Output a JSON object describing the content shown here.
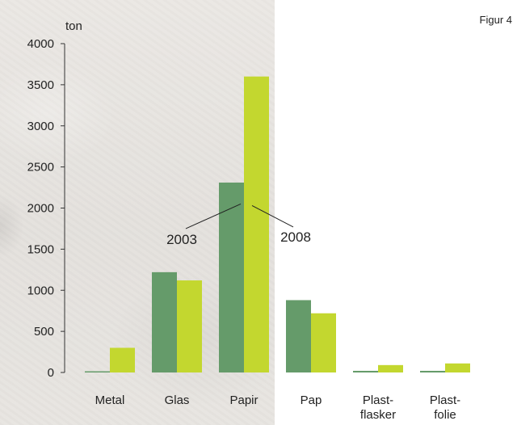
{
  "figure_label": "Figur 4",
  "chart_data": {
    "type": "bar",
    "unit": "ton",
    "ylim": [
      0,
      4000
    ],
    "yticks": [
      0,
      500,
      1000,
      1500,
      2000,
      2500,
      3000,
      3500,
      4000
    ],
    "categories": [
      [
        "Metal"
      ],
      [
        "Glas"
      ],
      [
        "Papir"
      ],
      [
        "Pap"
      ],
      [
        "Plast-",
        "flasker"
      ],
      [
        "Plast-",
        "folie"
      ]
    ],
    "series": [
      {
        "name": "2003",
        "values": [
          10,
          1220,
          2310,
          880,
          20,
          20
        ],
        "color": "#659b6a"
      },
      {
        "name": "2008",
        "values": [
          300,
          1120,
          3600,
          720,
          90,
          110
        ],
        "color": "#c3d72f"
      }
    ],
    "annotations": [
      {
        "text": "2003",
        "series": 0,
        "category": 2
      },
      {
        "text": "2008",
        "series": 1,
        "category": 2
      }
    ]
  }
}
